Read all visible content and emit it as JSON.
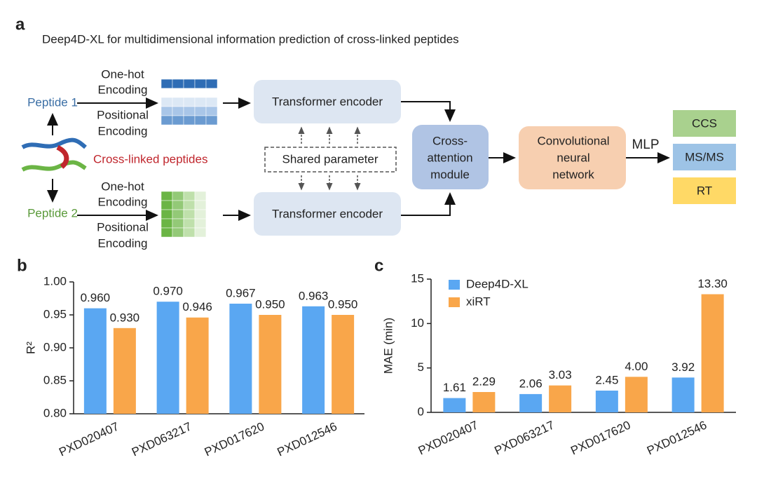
{
  "diagram": {
    "label": "a",
    "title": "Deep4D-XL for multidimensional information prediction of cross-linked peptides",
    "peptide_1": "Peptide 1",
    "peptide_2": "Peptide 2",
    "crosslinked": "Cross-linked peptides",
    "encoding_1": {
      "one_hot": [
        "One-hot",
        "Encoding"
      ],
      "positional": [
        "Positional",
        "Encoding"
      ]
    },
    "encoding_2": {
      "one_hot": [
        "One-hot",
        "Encoding"
      ],
      "positional": [
        "Positional",
        "Encoding"
      ]
    },
    "transformer_1": "Transformer encoder",
    "transformer_2": "Transformer encoder",
    "shared": "Shared parameter",
    "cross_attention": [
      "Cross-",
      "attention",
      "module"
    ],
    "cnn": [
      "Convolutional",
      "neural",
      "network"
    ],
    "mlp": "MLP",
    "outputs": [
      "CCS",
      "MS/MS",
      "RT"
    ]
  },
  "chart_data": [
    {
      "type": "bar",
      "panel_label": "b",
      "ylabel": "R²",
      "categories": [
        "PXD020407",
        "PXD063217",
        "PXD017620",
        "PXD012546"
      ],
      "series": [
        {
          "name": null,
          "color": "#5aa7f2",
          "values": [
            0.96,
            0.97,
            0.967,
            0.963
          ],
          "value_labels": [
            "0.960",
            "0.970",
            "0.967",
            "0.963"
          ]
        },
        {
          "name": null,
          "color": "#f9a64a",
          "values": [
            0.93,
            0.946,
            0.95,
            0.95
          ],
          "value_labels": [
            "0.930",
            "0.946",
            "0.950",
            "0.950"
          ]
        }
      ],
      "ylim": [
        0.8,
        1.0
      ],
      "yticks": [
        {
          "value": 0.8,
          "label": "0.80"
        },
        {
          "value": 0.85,
          "label": "0.85"
        },
        {
          "value": 0.9,
          "label": "0.90"
        },
        {
          "value": 0.95,
          "label": "0.95"
        },
        {
          "value": 1.0,
          "label": "1.00"
        }
      ]
    },
    {
      "type": "bar",
      "panel_label": "c",
      "ylabel": "MAE (min)",
      "categories": [
        "PXD020407",
        "PXD063217",
        "PXD017620",
        "PXD012546"
      ],
      "series": [
        {
          "name": "Deep4D-XL",
          "color": "#5aa7f2",
          "values": [
            1.61,
            2.06,
            2.45,
            3.92
          ],
          "value_labels": [
            "1.61",
            "2.06",
            "2.45",
            "3.92"
          ]
        },
        {
          "name": "xiRT",
          "color": "#f9a64a",
          "values": [
            2.29,
            3.03,
            4.0,
            13.3
          ],
          "value_labels": [
            "2.29",
            "3.03",
            "4.00",
            "13.30"
          ]
        }
      ],
      "ylim": [
        0,
        15
      ],
      "yticks": [
        0,
        5,
        10,
        15
      ],
      "legend": "upper-left"
    }
  ]
}
